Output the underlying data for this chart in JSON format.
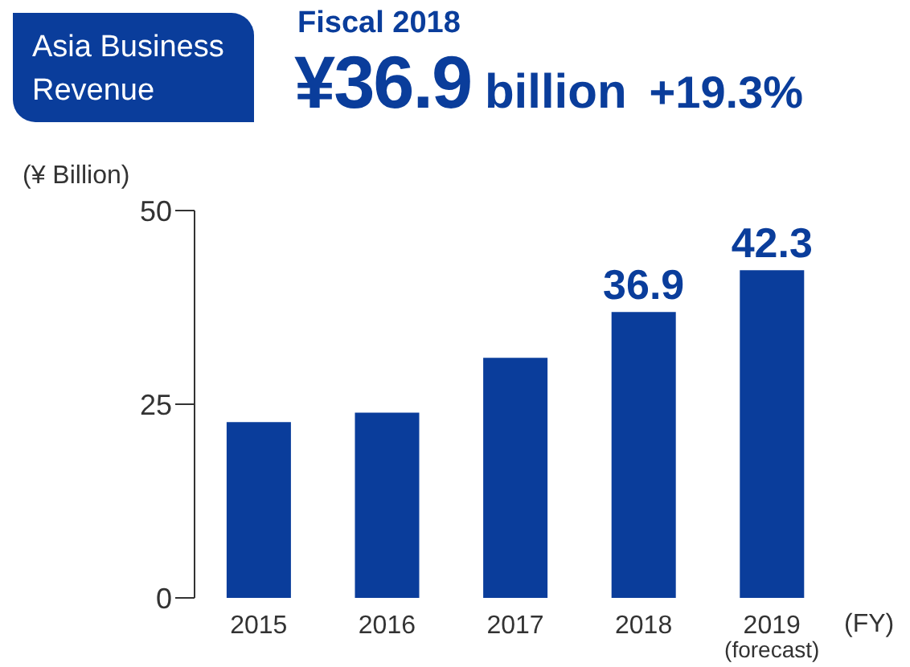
{
  "chart_data": {
    "type": "bar",
    "title": "Asia Business Revenue",
    "subtitle": "Fiscal 2018",
    "annotations": [
      "¥36.9 billion",
      "+19.3%"
    ],
    "ylabel": "(¥ Billion)",
    "xlabel": "(FY)",
    "categories": [
      "2015",
      "2016",
      "2017",
      "2018",
      "2019 (forecast)"
    ],
    "values": [
      22.7,
      23.9,
      31.0,
      36.9,
      42.3
    ],
    "color": "#0a3d9b",
    "value_labels": [
      null,
      null,
      null,
      "36.9",
      "42.3"
    ],
    "ylim": [
      0,
      50
    ],
    "yticks": [
      0,
      25,
      50
    ],
    "grid": false
  }
}
